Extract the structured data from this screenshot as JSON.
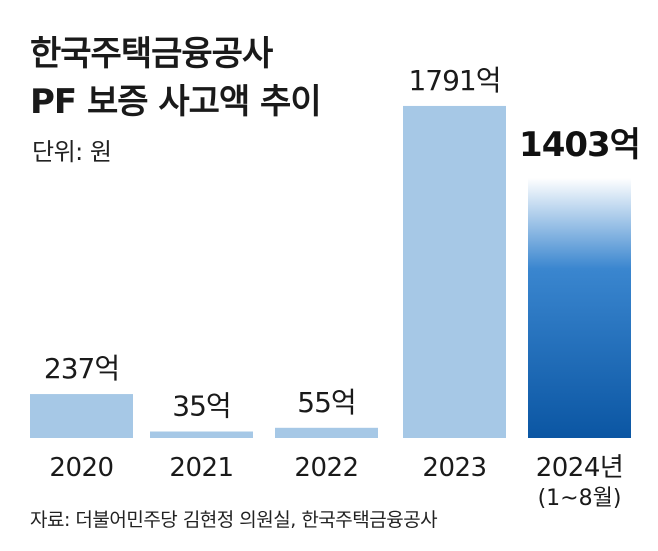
{
  "chart_data": {
    "type": "bar",
    "title": "한국주택금융공사 PF 보증 사고액 추이",
    "title_lines": [
      "한국주택금융공사",
      "PF 보증 사고액 추이"
    ],
    "unit_label": "단위: 원",
    "categories": [
      "2020",
      "2021",
      "2022",
      "2023",
      "2024년"
    ],
    "category_sublabels": [
      "",
      "",
      "",
      "",
      "(1~8월)"
    ],
    "values": [
      237,
      35,
      55,
      1791,
      1403
    ],
    "value_labels": [
      "237억",
      "35억",
      "55억",
      "1791억",
      "1403억"
    ],
    "highlight_index": 4,
    "ylim": [
      0,
      1850
    ],
    "grid": false,
    "xlabel": "",
    "ylabel": ""
  },
  "source": "자료: 더불어민주당 김현정 의원실, 한국주택금융공사",
  "colors": {
    "bar": "#a6c8e6",
    "highlight_dark": "#0b56a3",
    "highlight_mid": "#3a86cf",
    "highlight_light": "#ffffff",
    "text": "#1a1a1a"
  }
}
